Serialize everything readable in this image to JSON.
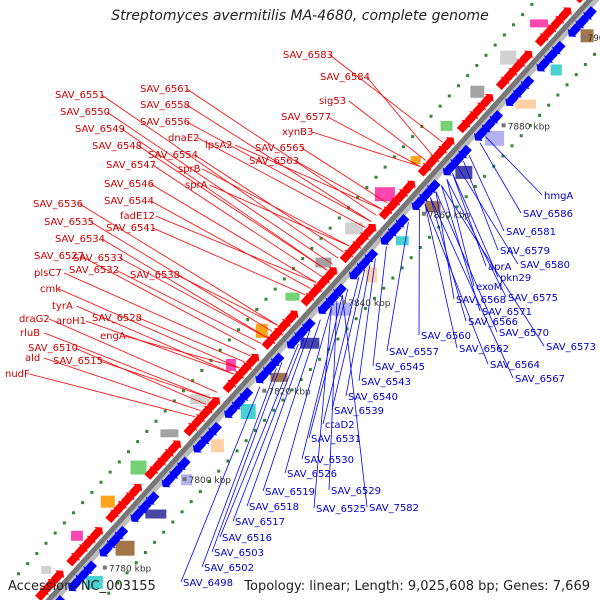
{
  "title": "Streptomyces avermitilis MA-4680, complete genome",
  "footer": {
    "accession": "Accession: NC_003155",
    "topology": "Topology: linear; Length: 9,025,608 bp; Genes: 7,669"
  },
  "colors": {
    "forward": "#ff0000",
    "reverse": "#0000ff",
    "backbone": "#8a8a8a",
    "rna": "#2e8b2e"
  },
  "kbp_ticks": [
    "7780 kbp",
    "7800 kbp",
    "7820 kbp",
    "7840 kbp",
    "7860 kbp",
    "7880 kbp",
    "7900 kbp"
  ],
  "forward_labels": [
    "SAV_6583",
    "SAV_6584",
    "sig53",
    "SAV_6577",
    "xynB3",
    "SAV_6561",
    "SAV_6558",
    "SAV_6556",
    "lpsA2",
    "SAV_6565",
    "dnaE2",
    "SAV_6563",
    "SAV_6551",
    "SAV_6550",
    "SAV_6549",
    "SAV_6548",
    "SAV_6554",
    "sprB",
    "SAV_6547",
    "sprA",
    "SAV_6546",
    "SAV_6544",
    "fadE12",
    "SAV_6541",
    "SAV_6536",
    "SAV_6535",
    "SAV_6534",
    "SAV_6527",
    "SAV_6533",
    "plsC7",
    "SAV_6532",
    "SAV_6538",
    "cmk",
    "tyrA",
    "aroH1",
    "SAV_6528",
    "draG2",
    "engA",
    "rluB",
    "SAV_6510",
    "ald",
    "SAV_6515",
    "nudF"
  ],
  "reverse_labels": [
    "hmgA",
    "SAV_6586",
    "SAV_6581",
    "SAV_6579",
    "aprA",
    "SAV_6580",
    "pkn29",
    "exoM",
    "SAV_6575",
    "SAV_6568",
    "SAV_6571",
    "SAV_6566",
    "SAV_6570",
    "SAV_6573",
    "SAV_6560",
    "SAV_6562",
    "SAV_6557",
    "SAV_6564",
    "SAV_6567",
    "SAV_6545",
    "SAV_6543",
    "SAV_6540",
    "SAV_6539",
    "ctaD2",
    "SAV_6531",
    "SAV_6530",
    "SAV_6526",
    "SAV_6529",
    "SAV_6519",
    "SAV_6525",
    "SAV_7582",
    "SAV_6518",
    "SAV_6517",
    "SAV_6516",
    "SAV_6503",
    "SAV_6502",
    "SAV_6498"
  ]
}
